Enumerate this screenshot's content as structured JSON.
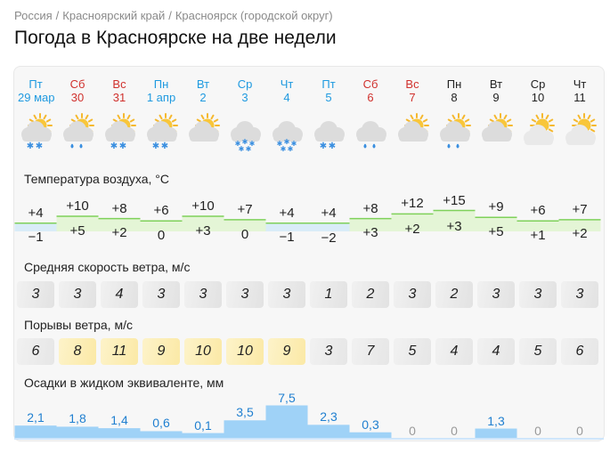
{
  "breadcrumb": [
    "Россия",
    "Красноярский край",
    "Красноярск (городской округ)"
  ],
  "breadcrumb_sep": "/",
  "title": "Погода в Красноярске на две недели",
  "colors": {
    "today": "#1f9ae0",
    "weekend": "#d0312d",
    "weekday": "#222222",
    "temp_line": "#7fd15a",
    "temp_fill": "#e4f5d6",
    "temp_fill_low": "#d9ecf8",
    "precip_fill": "#9fd2f7",
    "precip_text": "#1f7fd0",
    "gust_yellow": "#fbe9a6",
    "gust_grey": "#e6e6e6"
  },
  "days": [
    {
      "name": "Пт",
      "date": "29 мар",
      "type": "today",
      "icon": "cloud-sun-snow-icon",
      "weather": "snow"
    },
    {
      "name": "Сб",
      "date": "30",
      "type": "weekend",
      "icon": "cloud-sun-rain-icon",
      "weather": "rain"
    },
    {
      "name": "Вс",
      "date": "31",
      "type": "weekend",
      "icon": "cloud-sun-snow-icon",
      "weather": "snow"
    },
    {
      "name": "Пн",
      "date": "1 апр",
      "type": "today",
      "icon": "cloud-sun-snow-icon",
      "weather": "snow"
    },
    {
      "name": "Вт",
      "date": "2",
      "type": "today",
      "icon": "cloud-sun-icon",
      "weather": "none"
    },
    {
      "name": "Ср",
      "date": "3",
      "type": "today",
      "icon": "cloud-snow-icon",
      "weather": "heavy-snow"
    },
    {
      "name": "Чт",
      "date": "4",
      "type": "today",
      "icon": "cloud-snow-icon",
      "weather": "heavy-snow"
    },
    {
      "name": "Пт",
      "date": "5",
      "type": "today",
      "icon": "cloud-snow-icon",
      "weather": "snow"
    },
    {
      "name": "Сб",
      "date": "6",
      "type": "weekend",
      "icon": "cloud-rain-icon",
      "weather": "rain"
    },
    {
      "name": "Вс",
      "date": "7",
      "type": "weekend",
      "icon": "cloud-sun-icon",
      "weather": "none"
    },
    {
      "name": "Пн",
      "date": "8",
      "type": "weekday",
      "icon": "cloud-sun-rain-icon",
      "weather": "rain"
    },
    {
      "name": "Вт",
      "date": "9",
      "type": "weekday",
      "icon": "cloud-sun-icon",
      "weather": "none"
    },
    {
      "name": "Ср",
      "date": "10",
      "type": "weekday",
      "icon": "sun-cloud-icon",
      "weather": "none"
    },
    {
      "name": "Чт",
      "date": "11",
      "type": "weekday",
      "icon": "sun-cloud-icon",
      "weather": "none"
    }
  ],
  "temperature": {
    "label": "Температура воздуха, °C",
    "max": [
      "+4",
      "+10",
      "+8",
      "+6",
      "+10",
      "+7",
      "+4",
      "+4",
      "+8",
      "+12",
      "+15",
      "+9",
      "+6",
      "+7"
    ],
    "min": [
      "−1",
      "+5",
      "+2",
      "0",
      "+3",
      "0",
      "−1",
      "−2",
      "+3",
      "+2",
      "+3",
      "+5",
      "+1",
      "+2"
    ]
  },
  "wind": {
    "label": "Средняя скорость ветра, м/с",
    "values": [
      "3",
      "3",
      "4",
      "3",
      "3",
      "3",
      "3",
      "1",
      "2",
      "3",
      "2",
      "3",
      "3",
      "3"
    ]
  },
  "gusts": {
    "label": "Порывы ветра, м/с",
    "values": [
      "6",
      "8",
      "11",
      "9",
      "10",
      "10",
      "9",
      "3",
      "7",
      "5",
      "4",
      "4",
      "5",
      "6"
    ],
    "highlight": [
      false,
      true,
      true,
      true,
      true,
      true,
      true,
      false,
      false,
      false,
      false,
      false,
      false,
      false
    ]
  },
  "precipitation": {
    "label": "Осадки в жидком эквиваленте, мм",
    "values": [
      "2,1",
      "1,8",
      "1,4",
      "0,6",
      "0,1",
      "3,5",
      "7,5",
      "2,3",
      "0,3",
      "0",
      "0",
      "1,3",
      "0",
      "0"
    ],
    "amounts": [
      2.1,
      1.8,
      1.4,
      0.6,
      0.1,
      3.5,
      7.5,
      2.3,
      0.3,
      0,
      0,
      1.3,
      0,
      0
    ]
  }
}
